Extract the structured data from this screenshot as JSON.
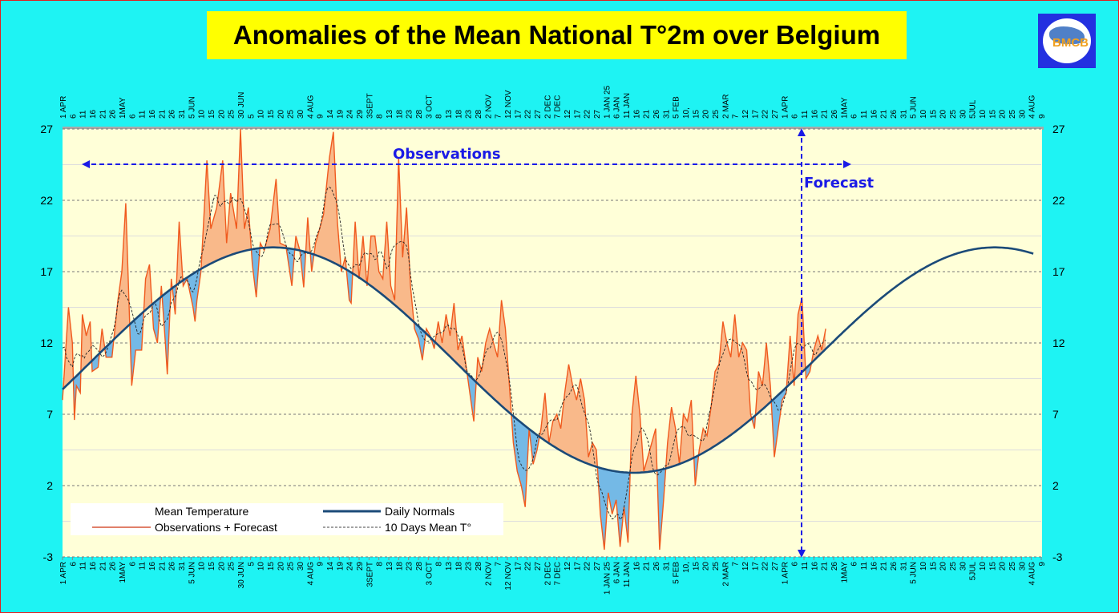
{
  "title": "Anomalies of the Mean National T°2m over Belgium",
  "logo_text": "BMCB",
  "annotations": {
    "observations": "Observations",
    "forecast": "Forecast"
  },
  "legend": {
    "mean_temperature": "Mean Temperature",
    "observations": "Observations + Forecast",
    "daily_normals": "Daily Normals",
    "ten_day_mean": "10 Days Mean T°"
  },
  "colors": {
    "observations_line": "#f05a1e",
    "above_fill": "#f9b98a",
    "below_fill": "#74b9e6",
    "normals": "#1b4a78",
    "plot_bg": "#ffffd8",
    "annotation": "#1a1ae6"
  },
  "chart_data": {
    "type": "line",
    "title": "Anomalies of the Mean National T°2m over Belgium",
    "xlabel": "",
    "ylabel": "",
    "ylim": [
      -3,
      27
    ],
    "yticks": [
      27,
      22,
      17,
      12,
      7,
      2,
      -3
    ],
    "x_unit": "days since 1 APR 2024",
    "xlim": [
      0,
      495
    ],
    "forecast_start_day": 374,
    "xtick_labels": [
      "1 APR",
      "6",
      "11",
      "16",
      "21",
      "26",
      "1MAY",
      "6",
      "11",
      "16",
      "21",
      "26",
      "31",
      "5 JUN",
      "10",
      "15",
      "20",
      "25",
      "30 JUN",
      "5",
      "10",
      "15",
      "20",
      "25",
      "30",
      "4 AUG",
      "9",
      "14",
      "19",
      "24",
      "29",
      "3SEPT",
      "8",
      "13",
      "18",
      "23",
      "28",
      "3 OCT",
      "8",
      "13",
      "18",
      "23",
      "28",
      "2 NOV",
      "7",
      "12 NOV",
      "17",
      "22",
      "27",
      "2 DEC",
      "7 DEC",
      "12",
      "17",
      "22",
      "27",
      "1 JAN 25",
      "6 JAN",
      "11 JAN",
      "16",
      "21",
      "26",
      "31",
      "5 FEB",
      "10,",
      "15",
      "20",
      "25",
      "2 MAR",
      "7",
      "12",
      "17",
      "22",
      "27",
      "1 APR",
      "6",
      "11",
      "16",
      "21",
      "26",
      "1MAY",
      "6",
      "11",
      "16",
      "21",
      "26",
      "31",
      "5 JUN",
      "10",
      "15",
      "20",
      "25",
      "30",
      "5JUL",
      "10",
      "15",
      "20",
      "25",
      "30",
      "4 AUG",
      "9"
    ],
    "normals": {
      "mean": 10.8,
      "amplitude": 7.9,
      "coldest_day": 289,
      "end_day": 491
    },
    "observations": [
      [
        0,
        8
      ],
      [
        3,
        14.5
      ],
      [
        5,
        12
      ],
      [
        6,
        6.6
      ],
      [
        7,
        9
      ],
      [
        9,
        8.5
      ],
      [
        10,
        14
      ],
      [
        12,
        12.5
      ],
      [
        14,
        13.5
      ],
      [
        15,
        10
      ],
      [
        18,
        10.3
      ],
      [
        20,
        13
      ],
      [
        22,
        11
      ],
      [
        25,
        11
      ],
      [
        28,
        15
      ],
      [
        30,
        17
      ],
      [
        32,
        21.8
      ],
      [
        35,
        9
      ],
      [
        37,
        11.5
      ],
      [
        40,
        11.5
      ],
      [
        42,
        16.5
      ],
      [
        44,
        17.5
      ],
      [
        46,
        13
      ],
      [
        48,
        12
      ],
      [
        50,
        16
      ],
      [
        52,
        12
      ],
      [
        53,
        9.8
      ],
      [
        55,
        16.5
      ],
      [
        57,
        14
      ],
      [
        59,
        20.5
      ],
      [
        61,
        16
      ],
      [
        63,
        16.5
      ],
      [
        66,
        14.5
      ],
      [
        67,
        13.5
      ],
      [
        68,
        15
      ],
      [
        70,
        17
      ],
      [
        73,
        24.8
      ],
      [
        75,
        20
      ],
      [
        78,
        21.5
      ],
      [
        81,
        24.8
      ],
      [
        83,
        19
      ],
      [
        85,
        22.5
      ],
      [
        88,
        20
      ],
      [
        90,
        27
      ],
      [
        92,
        20
      ],
      [
        94,
        21.5
      ],
      [
        96,
        17.5
      ],
      [
        98,
        15.2
      ],
      [
        100,
        19
      ],
      [
        102,
        18.5
      ],
      [
        105,
        20
      ],
      [
        108,
        23.5
      ],
      [
        110,
        19
      ],
      [
        113,
        18.8
      ],
      [
        116,
        16
      ],
      [
        118,
        19.5
      ],
      [
        120,
        18.5
      ],
      [
        122,
        15.9
      ],
      [
        124,
        20.8
      ],
      [
        126,
        17
      ],
      [
        128,
        19
      ],
      [
        130,
        20
      ],
      [
        132,
        21
      ],
      [
        135,
        25
      ],
      [
        137,
        26.8
      ],
      [
        139,
        20.5
      ],
      [
        141,
        17
      ],
      [
        143,
        18
      ],
      [
        145,
        15
      ],
      [
        146,
        14.8
      ],
      [
        148,
        20.5
      ],
      [
        150,
        16.5
      ],
      [
        152,
        19.5
      ],
      [
        154,
        16
      ],
      [
        156,
        19.5
      ],
      [
        158,
        19.5
      ],
      [
        160,
        17
      ],
      [
        162,
        16.5
      ],
      [
        164,
        20.5
      ],
      [
        166,
        16
      ],
      [
        168,
        15
      ],
      [
        170,
        25
      ],
      [
        172,
        18
      ],
      [
        174,
        21.5
      ],
      [
        176,
        16
      ],
      [
        178,
        13
      ],
      [
        180,
        12.3
      ],
      [
        182,
        10.8
      ],
      [
        184,
        13
      ],
      [
        186,
        12.5
      ],
      [
        188,
        11.6
      ],
      [
        190,
        13.5
      ],
      [
        192,
        12
      ],
      [
        194,
        14
      ],
      [
        196,
        12.5
      ],
      [
        198,
        14.8
      ],
      [
        200,
        11.5
      ],
      [
        202,
        12.5
      ],
      [
        204,
        10.5
      ],
      [
        206,
        8.5
      ],
      [
        208,
        6.5
      ],
      [
        210,
        11
      ],
      [
        212,
        10
      ],
      [
        214,
        12
      ],
      [
        216,
        13
      ],
      [
        218,
        12
      ],
      [
        220,
        11
      ],
      [
        222,
        15
      ],
      [
        224,
        13
      ],
      [
        226,
        9
      ],
      [
        228,
        5
      ],
      [
        230,
        3
      ],
      [
        232,
        2
      ],
      [
        234,
        0.5
      ],
      [
        236,
        6
      ],
      [
        238,
        3.5
      ],
      [
        240,
        4.5
      ],
      [
        242,
        6
      ],
      [
        244,
        8.5
      ],
      [
        246,
        5
      ],
      [
        248,
        6.5
      ],
      [
        250,
        7
      ],
      [
        252,
        6
      ],
      [
        254,
        8.5
      ],
      [
        256,
        10.5
      ],
      [
        258,
        9
      ],
      [
        260,
        8
      ],
      [
        262,
        9.5
      ],
      [
        264,
        8
      ],
      [
        266,
        4
      ],
      [
        268,
        5
      ],
      [
        270,
        4.5
      ],
      [
        272,
        0
      ],
      [
        274,
        -2.5
      ],
      [
        276,
        1.5
      ],
      [
        278,
        0
      ],
      [
        280,
        1
      ],
      [
        282,
        -2.3
      ],
      [
        284,
        0.5
      ],
      [
        286,
        -2
      ],
      [
        288,
        7
      ],
      [
        290,
        9.7
      ],
      [
        292,
        7
      ],
      [
        294,
        3
      ],
      [
        296,
        4
      ],
      [
        298,
        5
      ],
      [
        300,
        6
      ],
      [
        302,
        -2.5
      ],
      [
        304,
        1
      ],
      [
        306,
        5
      ],
      [
        308,
        7.5
      ],
      [
        310,
        6
      ],
      [
        312,
        3.5
      ],
      [
        314,
        7
      ],
      [
        316,
        6.5
      ],
      [
        318,
        8
      ],
      [
        320,
        2
      ],
      [
        322,
        4.5
      ],
      [
        324,
        6
      ],
      [
        326,
        5.5
      ],
      [
        328,
        7.5
      ],
      [
        330,
        10
      ],
      [
        332,
        10.5
      ],
      [
        334,
        13.5
      ],
      [
        336,
        12
      ],
      [
        338,
        11
      ],
      [
        340,
        14
      ],
      [
        342,
        11
      ],
      [
        344,
        12
      ],
      [
        346,
        11.5
      ],
      [
        348,
        7
      ],
      [
        350,
        6
      ],
      [
        352,
        10
      ],
      [
        354,
        9
      ],
      [
        356,
        12
      ],
      [
        358,
        9
      ],
      [
        360,
        4
      ],
      [
        362,
        6
      ],
      [
        364,
        8
      ],
      [
        366,
        8.5
      ],
      [
        368,
        12.5
      ],
      [
        370,
        9
      ],
      [
        372,
        14
      ],
      [
        374,
        15.2
      ],
      [
        376,
        9.5
      ],
      [
        378,
        10
      ],
      [
        380,
        11.5
      ],
      [
        382,
        12.5
      ],
      [
        384,
        11.5
      ],
      [
        386,
        13
      ]
    ]
  }
}
